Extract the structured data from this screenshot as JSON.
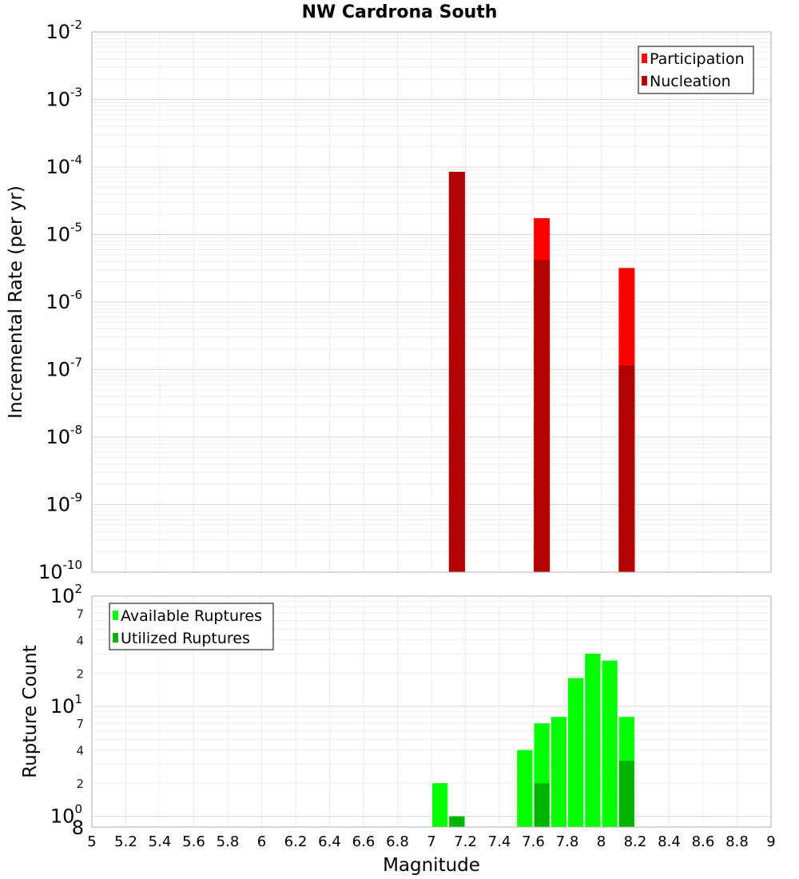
{
  "chart_data": [
    {
      "type": "bar",
      "title": "NW Cardrona South",
      "ylabel": "Incremental Rate (per yr)",
      "xlabel": "",
      "yscale": "log",
      "ylim": [
        1e-10,
        0.01
      ],
      "xlim": [
        5,
        9
      ],
      "y_tick_labels": [
        {
          "base": "10",
          "exp": "-2"
        },
        {
          "base": "10",
          "exp": "-3"
        },
        {
          "base": "10",
          "exp": "-4"
        },
        {
          "base": "10",
          "exp": "-5"
        },
        {
          "base": "10",
          "exp": "-6"
        },
        {
          "base": "10",
          "exp": "-7"
        },
        {
          "base": "10",
          "exp": "-8"
        },
        {
          "base": "10",
          "exp": "-9"
        },
        {
          "base": "10",
          "exp": "-10"
        }
      ],
      "legend_position": "top-right",
      "series": [
        {
          "name": "Participation",
          "color": "#ff0000",
          "points": [
            {
              "x": 7.15,
              "y": 8.5e-05
            },
            {
              "x": 7.65,
              "y": 1.75e-05
            },
            {
              "x": 8.15,
              "y": 3.2e-06
            }
          ]
        },
        {
          "name": "Nucleation",
          "color": "#b30000",
          "points": [
            {
              "x": 7.15,
              "y": 8.5e-05
            },
            {
              "x": 7.65,
              "y": 4.2e-06
            },
            {
              "x": 8.15,
              "y": 1.15e-07
            }
          ]
        }
      ]
    },
    {
      "type": "bar",
      "title": "",
      "ylabel": "Rupture Count",
      "xlabel": "Magnitude",
      "yscale": "log",
      "ylim": [
        0.8,
        100
      ],
      "xlim": [
        5,
        9
      ],
      "x_ticks": [
        "5",
        "5.2",
        "5.4",
        "5.6",
        "5.8",
        "6",
        "6.2",
        "6.4",
        "6.6",
        "6.8",
        "7",
        "7.2",
        "7.4",
        "7.6",
        "7.8",
        "8",
        "8.2",
        "8.4",
        "8.6",
        "8.8",
        "9"
      ],
      "y_decade_labels": [
        {
          "base": "10",
          "exp": "2",
          "value": 100
        },
        {
          "base": "10",
          "exp": "1",
          "value": 10
        },
        {
          "base": "10",
          "exp": "0",
          "value": 1
        }
      ],
      "y_minor_labels": [
        {
          "label": "7",
          "value": 70
        },
        {
          "label": "4",
          "value": 40
        },
        {
          "label": "2",
          "value": 20
        },
        {
          "label": "7",
          "value": 7
        },
        {
          "label": "4",
          "value": 4
        },
        {
          "label": "2",
          "value": 2
        },
        {
          "label": "8",
          "value": 0.8
        }
      ],
      "legend_position": "top-left",
      "series": [
        {
          "name": "Available Ruptures",
          "color": "#00ff00",
          "points": [
            {
              "x": 7.05,
              "y": 2
            },
            {
              "x": 7.15,
              "y": 1
            },
            {
              "x": 7.55,
              "y": 4
            },
            {
              "x": 7.65,
              "y": 7
            },
            {
              "x": 7.75,
              "y": 8
            },
            {
              "x": 7.85,
              "y": 18
            },
            {
              "x": 7.95,
              "y": 30
            },
            {
              "x": 8.05,
              "y": 26
            },
            {
              "x": 8.15,
              "y": 8
            }
          ]
        },
        {
          "name": "Utilized Ruptures",
          "color": "#00b400",
          "points": [
            {
              "x": 7.15,
              "y": 1
            },
            {
              "x": 7.65,
              "y": 2
            },
            {
              "x": 8.15,
              "y": 3.2
            }
          ]
        }
      ]
    }
  ]
}
